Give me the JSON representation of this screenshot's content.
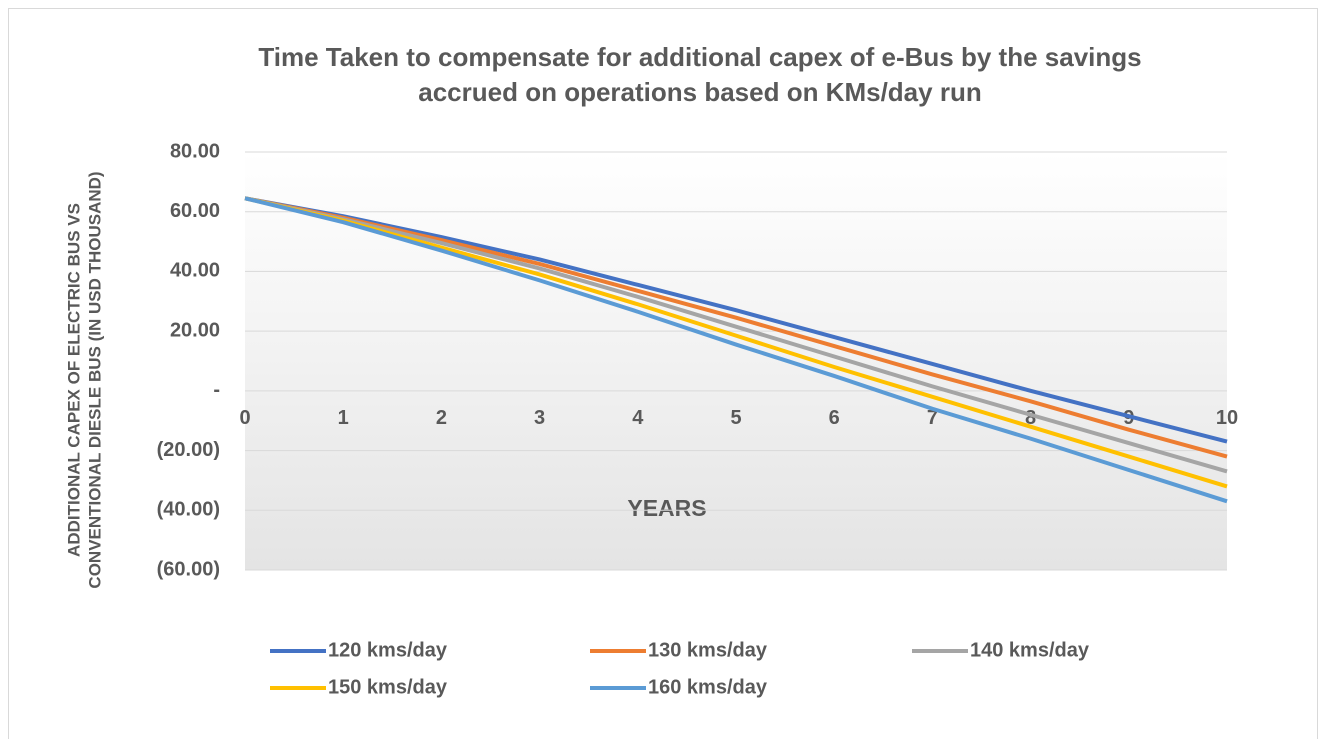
{
  "chart_data": {
    "type": "line",
    "title": [
      "Time Taken to compensate for additional capex of e-Bus by the savings",
      "accrued on operations based on KMs/day run"
    ],
    "x_label": "YEARS",
    "y_label": [
      "ADDITIONAL  CAPEX OF ELECTRIC BUS VS",
      "CONVENTIONAL DIESLE BUS (IN USD THOUSAND)"
    ],
    "x": [
      0,
      1,
      2,
      3,
      4,
      5,
      6,
      7,
      8,
      9,
      10
    ],
    "xlim": [
      0,
      10
    ],
    "xticks": [
      0,
      1,
      2,
      3,
      4,
      5,
      6,
      7,
      8,
      9,
      10
    ],
    "ylim": [
      -60,
      80
    ],
    "yticks": [
      {
        "value": 80,
        "label": "80.00"
      },
      {
        "value": 60,
        "label": "60.00"
      },
      {
        "value": 40,
        "label": "40.00"
      },
      {
        "value": 20,
        "label": "20.00"
      },
      {
        "value": 0,
        "label": "-"
      },
      {
        "value": -20,
        "label": "(20.00)"
      },
      {
        "value": -40,
        "label": "(40.00)"
      },
      {
        "value": -60,
        "label": "(60.00)"
      }
    ],
    "grid": true,
    "legend": "bottom",
    "series": [
      {
        "name": "120 kms/day",
        "color": "#4472c4",
        "values": [
          64.5,
          58.5,
          51.5,
          44,
          35.5,
          27,
          18,
          9,
          0,
          -8.5,
          -17
        ]
      },
      {
        "name": "130 kms/day",
        "color": "#ed7d31",
        "values": [
          64.5,
          58,
          50.5,
          42.5,
          33.5,
          24.5,
          15,
          5.5,
          -3.5,
          -13,
          -22
        ]
      },
      {
        "name": "140 kms/day",
        "color": "#a5a5a5",
        "values": [
          64.5,
          57.5,
          49.5,
          41,
          31.5,
          21.5,
          11.5,
          1.5,
          -8,
          -17.5,
          -27
        ]
      },
      {
        "name": "150 kms/day",
        "color": "#ffc000",
        "values": [
          64.5,
          57,
          48,
          39,
          29,
          18.5,
          8,
          -2,
          -12,
          -22,
          -32
        ]
      },
      {
        "name": "160 kms/day",
        "color": "#5b9bd5",
        "values": [
          64.5,
          56.5,
          47,
          37,
          26.5,
          15.5,
          5,
          -6,
          -16,
          -26.5,
          -37
        ]
      }
    ]
  }
}
